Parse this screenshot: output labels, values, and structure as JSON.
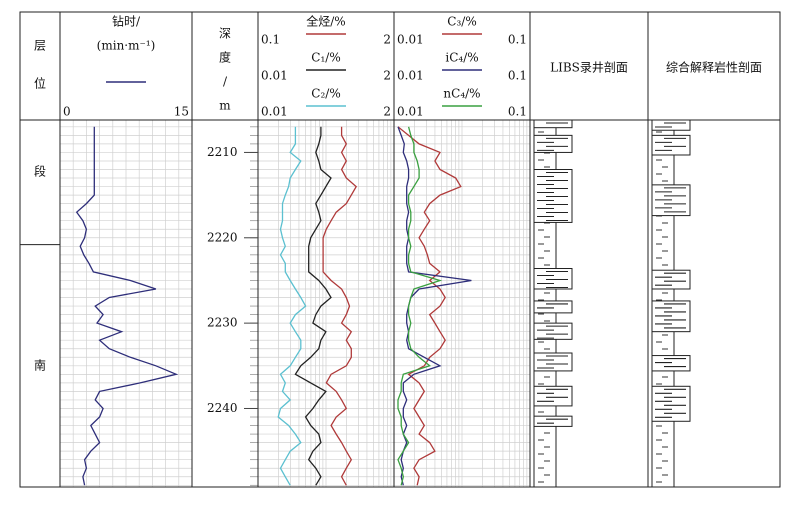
{
  "layer": {
    "title": [
      "层",
      "位"
    ],
    "zones": [
      {
        "label": "段",
        "top": 2206.2,
        "bottom": 2220.8
      },
      {
        "label": "南",
        "top": 2220.8,
        "bottom": 2249.2
      }
    ]
  },
  "depth_axis": {
    "title": [
      "深",
      "度",
      "/",
      "m"
    ],
    "ylim": [
      2206.2,
      2249.2
    ],
    "yticks": [
      2210,
      2220,
      2230,
      2240
    ]
  },
  "depth": [
    2207,
    2208,
    2209,
    2210,
    2211,
    2212,
    2213,
    2214,
    2215,
    2216,
    2217,
    2218,
    2219,
    2220,
    2221,
    2222,
    2223,
    2224,
    2225,
    2226,
    2227,
    2228,
    2229,
    2230,
    2231,
    2232,
    2233,
    2234,
    2235,
    2236,
    2237,
    2238,
    2239,
    2240,
    2241,
    2242,
    2243,
    2244,
    2245,
    2246,
    2247,
    2248,
    2249
  ],
  "tracks": [
    {
      "type": "curves",
      "title": "钻时/",
      "unit": "(min·m⁻¹)",
      "log": false,
      "curves": [
        {
          "color": "#2e2e7a",
          "xlim": [
            0,
            15
          ],
          "values": [
            3.9,
            3.9,
            3.9,
            3.9,
            3.9,
            3.9,
            3.9,
            3.9,
            3.9,
            3.0,
            1.9,
            2.6,
            3.0,
            2.8,
            2.3,
            2.7,
            3.3,
            3.8,
            8.0,
            10.9,
            5.6,
            4.0,
            4.9,
            4.2,
            7.0,
            4.5,
            5.6,
            8.0,
            10.9,
            13.2,
            9.1,
            4.5,
            4.0,
            4.9,
            4.5,
            3.5,
            4.0,
            4.5,
            3.5,
            2.8,
            3.0,
            2.6,
            2.8
          ]
        }
      ]
    },
    {
      "type": "curves",
      "log": true,
      "curves": [
        {
          "name": "全烃/%",
          "color": "#b03a3a",
          "xlim": [
            0.1,
            2
          ],
          "values": [
            0.63,
            0.63,
            0.7,
            0.63,
            0.7,
            0.63,
            0.7,
            0.87,
            0.78,
            0.7,
            0.56,
            0.5,
            0.45,
            0.42,
            0.42,
            0.42,
            0.42,
            0.42,
            0.5,
            0.63,
            0.7,
            0.75,
            0.7,
            0.63,
            0.78,
            0.7,
            0.78,
            0.78,
            0.7,
            0.5,
            0.45,
            0.56,
            0.63,
            0.7,
            0.56,
            0.5,
            0.56,
            0.63,
            0.7,
            0.78,
            0.7,
            0.63,
            0.7
          ]
        },
        {
          "name": "C₁/%",
          "color": "#222222",
          "xlim": [
            0.01,
            2
          ],
          "values": [
            0.116,
            0.116,
            0.107,
            0.095,
            0.107,
            0.116,
            0.172,
            0.141,
            0.116,
            0.095,
            0.107,
            0.116,
            0.095,
            0.078,
            0.072,
            0.072,
            0.072,
            0.072,
            0.107,
            0.141,
            0.172,
            0.116,
            0.095,
            0.085,
            0.141,
            0.116,
            0.107,
            0.078,
            0.053,
            0.043,
            0.078,
            0.141,
            0.107,
            0.085,
            0.064,
            0.078,
            0.107,
            0.116,
            0.085,
            0.072,
            0.095,
            0.116,
            0.095
          ]
        },
        {
          "name": "C₂/%",
          "color": "#5bc0d0",
          "xlim": [
            0.01,
            2
          ],
          "values": [
            0.043,
            0.043,
            0.043,
            0.035,
            0.053,
            0.043,
            0.035,
            0.033,
            0.029,
            0.026,
            0.026,
            0.026,
            0.024,
            0.026,
            0.029,
            0.024,
            0.029,
            0.029,
            0.035,
            0.043,
            0.053,
            0.064,
            0.043,
            0.035,
            0.043,
            0.053,
            0.053,
            0.043,
            0.035,
            0.024,
            0.029,
            0.026,
            0.035,
            0.024,
            0.022,
            0.033,
            0.043,
            0.053,
            0.035,
            0.029,
            0.024,
            0.029,
            0.035
          ]
        }
      ]
    },
    {
      "type": "curves",
      "log": true,
      "curves": [
        {
          "name": "C₃/%",
          "color": "#b03a3a",
          "xlim": [
            0.01,
            0.1
          ],
          "values": [
            0.0107,
            0.0128,
            0.0153,
            0.0218,
            0.02,
            0.0218,
            0.0284,
            0.031,
            0.0218,
            0.0183,
            0.0167,
            0.0183,
            0.0167,
            0.0153,
            0.0167,
            0.0176,
            0.0183,
            0.0218,
            0.0183,
            0.0218,
            0.0238,
            0.0218,
            0.0183,
            0.02,
            0.0218,
            0.0238,
            0.0218,
            0.0183,
            0.0167,
            0.0128,
            0.0153,
            0.0167,
            0.0153,
            0.014,
            0.0153,
            0.0167,
            0.0153,
            0.0183,
            0.02,
            0.0153,
            0.014,
            0.0153,
            0.0148
          ]
        },
        {
          "name": "iC₄/%",
          "color": "#2e2e7a",
          "xlim": [
            0.01,
            0.1
          ],
          "values": [
            0.0107,
            0.0113,
            0.0119,
            0.0117,
            0.0124,
            0.0128,
            0.0128,
            0.0124,
            0.0124,
            0.0124,
            0.0128,
            0.0124,
            0.0124,
            0.0128,
            0.0124,
            0.0124,
            0.0124,
            0.0128,
            0.0371,
            0.0153,
            0.0133,
            0.0128,
            0.0124,
            0.0124,
            0.0128,
            0.0124,
            0.0128,
            0.0167,
            0.0218,
            0.014,
            0.0117,
            0.0117,
            0.0124,
            0.0117,
            0.0117,
            0.0124,
            0.0117,
            0.0124,
            0.0117,
            0.0113,
            0.0117,
            0.0113,
            0.0117
          ]
        },
        {
          "name": "nC₄/%",
          "color": "#3aa040",
          "xlim": [
            0.01,
            0.1
          ],
          "values": [
            0.0128,
            0.0133,
            0.014,
            0.014,
            0.0148,
            0.0153,
            0.0153,
            0.014,
            0.0128,
            0.0128,
            0.0133,
            0.0133,
            0.0128,
            0.0128,
            0.0133,
            0.0128,
            0.0128,
            0.0133,
            0.0218,
            0.014,
            0.0133,
            0.0128,
            0.0128,
            0.0133,
            0.0128,
            0.0128,
            0.0133,
            0.0153,
            0.0183,
            0.0117,
            0.0113,
            0.0113,
            0.0107,
            0.0107,
            0.0113,
            0.0113,
            0.0117,
            0.0128,
            0.0117,
            0.0107,
            0.0113,
            0.0117,
            0.0113
          ]
        }
      ]
    },
    {
      "type": "lithology",
      "title": "LIBS录井剖面",
      "intervals": [
        [
          2206.2,
          2207.1
        ],
        [
          2208,
          2210
        ],
        [
          2212,
          2218.2
        ],
        [
          2223.6,
          2226
        ],
        [
          2227.4,
          2228.8
        ],
        [
          2230,
          2231.9
        ],
        [
          2233.5,
          2235.6
        ],
        [
          2237.4,
          2239.7
        ],
        [
          2240.9,
          2242.1
        ]
      ]
    },
    {
      "type": "lithology",
      "title": "综合解释岩性剖面",
      "intervals": [
        [
          2206.2,
          2207.4
        ],
        [
          2208,
          2210.3
        ],
        [
          2213.8,
          2217.4
        ],
        [
          2223.8,
          2226
        ],
        [
          2227.4,
          2231
        ],
        [
          2233.8,
          2235.6
        ],
        [
          2237.4,
          2241.5
        ]
      ]
    }
  ]
}
